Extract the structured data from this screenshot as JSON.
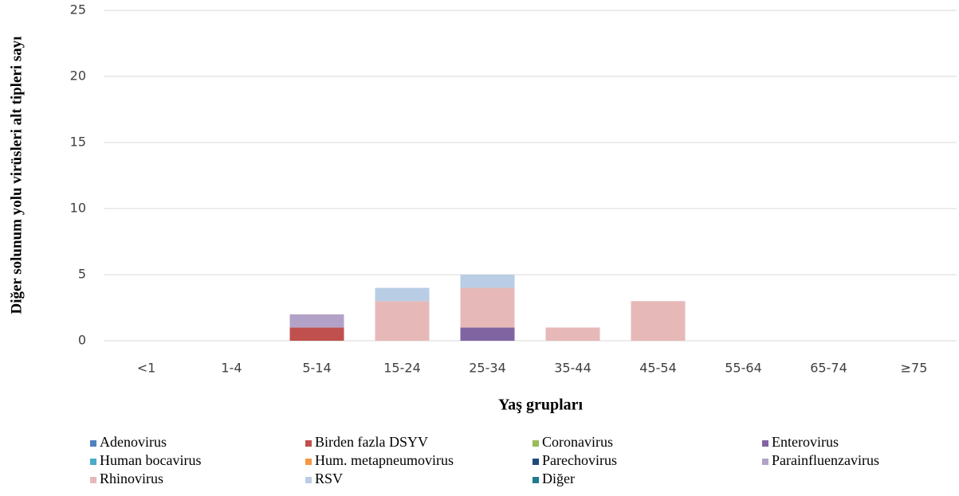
{
  "chart_data": {
    "type": "stacked_bar",
    "y_label": "Diğer solunum yolu virüsleri alt tipleri sayı",
    "x_label": "Yaş grupları",
    "categories": [
      "<1",
      "1-4",
      "5-14",
      "15-24",
      "25-34",
      "35-44",
      "45-54",
      "55-64",
      "65-74",
      "≥75"
    ],
    "ylim": [
      0,
      25
    ],
    "yticks": [
      0,
      5,
      10,
      15,
      20,
      25
    ],
    "grid": true,
    "series": [
      {
        "name": "Adenovirus",
        "color": "#4f81bd",
        "values": [
          0,
          0,
          0,
          0,
          0,
          0,
          0,
          0,
          0,
          0
        ]
      },
      {
        "name": "Birden fazla DSYV",
        "color": "#c0504d",
        "values": [
          0,
          0,
          1,
          0,
          0,
          0,
          0,
          0,
          0,
          0
        ]
      },
      {
        "name": "Coronavirus",
        "color": "#9bbb59",
        "values": [
          0,
          0,
          0,
          0,
          0,
          0,
          0,
          0,
          0,
          0
        ]
      },
      {
        "name": "Enterovirus",
        "color": "#8064a2",
        "values": [
          0,
          0,
          0,
          0,
          1,
          0,
          0,
          0,
          0,
          0
        ]
      },
      {
        "name": "Human bocavirus",
        "color": "#4bacc6",
        "values": [
          0,
          0,
          0,
          0,
          0,
          0,
          0,
          0,
          0,
          0
        ]
      },
      {
        "name": "Hum. metapneumovirus",
        "color": "#f79646",
        "values": [
          0,
          0,
          0,
          0,
          0,
          0,
          0,
          0,
          0,
          0
        ]
      },
      {
        "name": "Parechovirus",
        "color": "#1f497d",
        "values": [
          0,
          0,
          0,
          0,
          0,
          0,
          0,
          0,
          0,
          0
        ]
      },
      {
        "name": "Parainfluenzavirus",
        "color": "#b3a2c7",
        "values": [
          0,
          0,
          1,
          0,
          0,
          0,
          0,
          0,
          0,
          0
        ]
      },
      {
        "name": "Rhinovirus",
        "color": "#e6b9b8",
        "values": [
          0,
          0,
          0,
          3,
          3,
          1,
          3,
          0,
          0,
          0
        ]
      },
      {
        "name": "RSV",
        "color": "#b9cde5",
        "values": [
          0,
          0,
          0,
          1,
          1,
          0,
          0,
          0,
          0,
          0
        ]
      },
      {
        "name": "Diğer",
        "color": "#1f7c8c",
        "values": [
          0,
          0,
          0,
          0,
          0,
          0,
          0,
          0,
          0,
          0
        ]
      }
    ]
  }
}
